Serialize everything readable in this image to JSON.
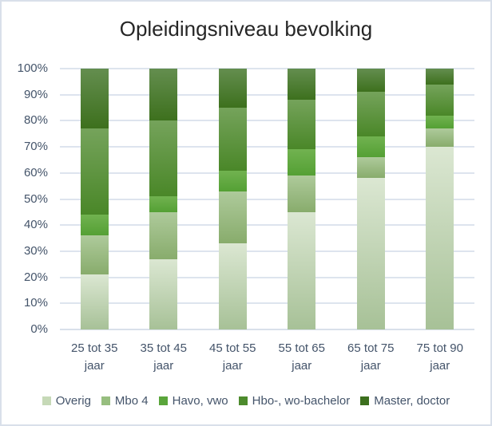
{
  "window": {
    "background": "#ffffff",
    "border_color": "#d9e0ea"
  },
  "chart_data": {
    "type": "bar",
    "variant": "stacked-100-percent-column",
    "title": "Opleidingsniveau bevolking",
    "categories": [
      "25 tot 35 jaar",
      "35 tot 45 jaar",
      "45 tot 55 jaar",
      "55 tot 65 jaar",
      "65 tot 75 jaar",
      "75 tot 90 jaar"
    ],
    "series": [
      {
        "name": "Overig",
        "values": [
          21,
          27,
          33,
          45,
          58,
          70
        ],
        "gradient_top": "#dbe7d2",
        "gradient_bottom": "#a7c197",
        "legend_color": "#c6d9b7"
      },
      {
        "name": "Mbo 4",
        "values": [
          15,
          18,
          20,
          14,
          8,
          7
        ],
        "gradient_top": "#aeca9b",
        "gradient_bottom": "#88ac6c",
        "legend_color": "#97be7f"
      },
      {
        "name": "Havo, vwo",
        "values": [
          8,
          6,
          8,
          10,
          8,
          5
        ],
        "gradient_top": "#71b250",
        "gradient_bottom": "#54a034",
        "legend_color": "#5aa53b"
      },
      {
        "name": "Hbo-, wo-bachelor",
        "values": [
          33,
          29,
          24,
          19,
          17,
          12
        ],
        "gradient_top": "#75a35b",
        "gradient_bottom": "#4a8728",
        "legend_color": "#4d8b2d"
      },
      {
        "name": "Master, doctor",
        "values": [
          23,
          20,
          15,
          12,
          9,
          6
        ],
        "gradient_top": "#648e4f",
        "gradient_bottom": "#3d701d",
        "legend_color": "#3c6f1e"
      }
    ],
    "y_ticks": [
      "0%",
      "10%",
      "20%",
      "30%",
      "40%",
      "50%",
      "60%",
      "70%",
      "80%",
      "90%",
      "100%"
    ],
    "ylim": [
      0,
      100
    ],
    "grid": true,
    "gridline_color": "#dde4ee",
    "text_color": "#44546a",
    "title_color": "#262626",
    "legend_position": "bottom"
  }
}
